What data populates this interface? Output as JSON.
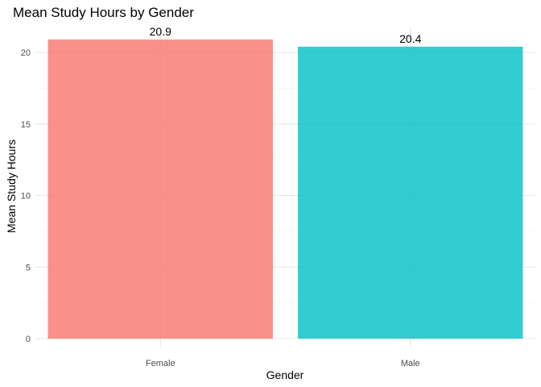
{
  "chart_data": {
    "type": "bar",
    "title": "Mean Study Hours by Gender",
    "xlabel": "Gender",
    "ylabel": "Mean Study Hours",
    "categories": [
      "Female",
      "Male"
    ],
    "values": [
      20.9,
      20.4
    ],
    "data_labels": [
      "20.9",
      "20.4"
    ],
    "colors": [
      "#F8766D",
      "#00BFC4"
    ],
    "bar_opacity": 0.8,
    "ylim": [
      0,
      21.9
    ],
    "yticks": [
      0,
      5,
      10,
      15,
      20
    ],
    "ytick_labels": [
      "0",
      "5",
      "10",
      "15",
      "20"
    ],
    "grid": true,
    "legend": "none"
  }
}
